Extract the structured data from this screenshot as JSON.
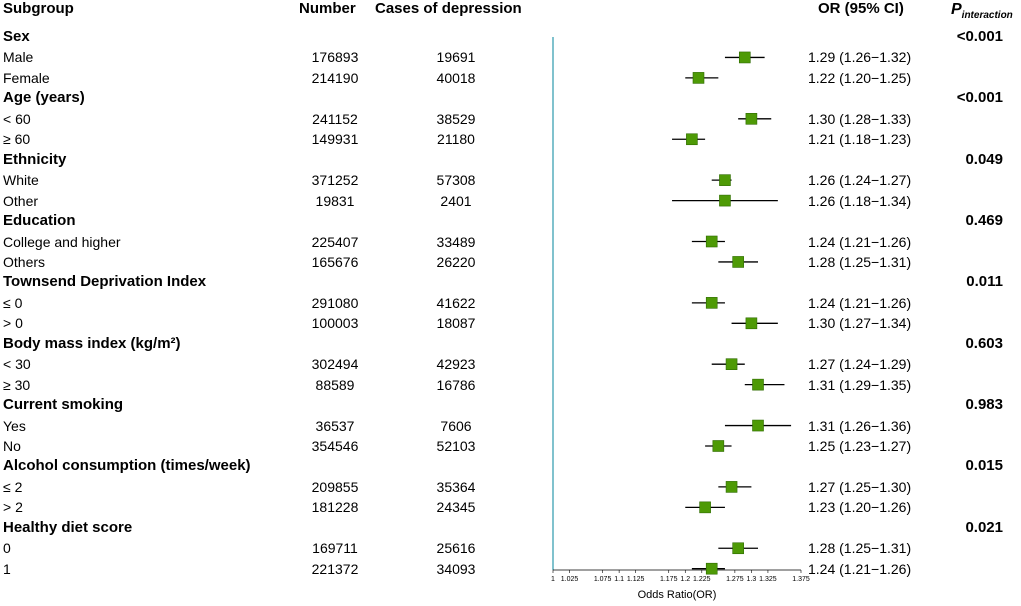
{
  "header": {
    "subgroup": "Subgroup",
    "number": "Number",
    "cases": "Cases of depression",
    "or": "OR (95% CI)",
    "p_main": "P",
    "p_sub": "interaction"
  },
  "chart_data": {
    "type": "forest",
    "xlabel": "Odds Ratio(OR)",
    "xlim": [
      1,
      1.375
    ],
    "reference_line": 1,
    "ticks": [
      "1",
      "1.025",
      "1.075",
      "1.1",
      "1.125",
      "1.175",
      "1.2",
      "1.225",
      "1.275",
      "1.3",
      "1.325",
      "1.375"
    ],
    "tick_values": [
      1,
      1.025,
      1.075,
      1.1,
      1.125,
      1.175,
      1.2,
      1.225,
      1.275,
      1.3,
      1.325,
      1.375
    ],
    "groups": [
      {
        "label": "Sex",
        "p_interaction": "<0.001",
        "subgroups": [
          {
            "label": "Male",
            "number": "176893",
            "cases": "19691",
            "or": 1.29,
            "lo": 1.26,
            "hi": 1.32,
            "or_text": "1.29 (1.26−1.32)"
          },
          {
            "label": "Female",
            "number": "214190",
            "cases": "40018",
            "or": 1.22,
            "lo": 1.2,
            "hi": 1.25,
            "or_text": "1.22 (1.20−1.25)"
          }
        ]
      },
      {
        "label": "Age (years)",
        "p_interaction": "<0.001",
        "subgroups": [
          {
            "label": "< 60",
            "number": "241152",
            "cases": "38529",
            "or": 1.3,
            "lo": 1.28,
            "hi": 1.33,
            "or_text": "1.30 (1.28−1.33)"
          },
          {
            "label": "≥ 60",
            "number": "149931",
            "cases": "21180",
            "or": 1.21,
            "lo": 1.18,
            "hi": 1.23,
            "or_text": "1.21 (1.18−1.23)"
          }
        ]
      },
      {
        "label": "Ethnicity",
        "p_interaction": "0.049",
        "subgroups": [
          {
            "label": "White",
            "number": "371252",
            "cases": "57308",
            "or": 1.26,
            "lo": 1.24,
            "hi": 1.27,
            "or_text": "1.26 (1.24−1.27)"
          },
          {
            "label": "Other",
            "number": "19831",
            "cases": "2401",
            "or": 1.26,
            "lo": 1.18,
            "hi": 1.34,
            "or_text": "1.26 (1.18−1.34)"
          }
        ]
      },
      {
        "label": "Education",
        "p_interaction": "0.469",
        "subgroups": [
          {
            "label": "College and higher",
            "number": "225407",
            "cases": "33489",
            "or": 1.24,
            "lo": 1.21,
            "hi": 1.26,
            "or_text": "1.24 (1.21−1.26)"
          },
          {
            "label": "Others",
            "number": "165676",
            "cases": "26220",
            "or": 1.28,
            "lo": 1.25,
            "hi": 1.31,
            "or_text": "1.28 (1.25−1.31)"
          }
        ]
      },
      {
        "label": "Townsend Deprivation Index",
        "p_interaction": "0.011",
        "subgroups": [
          {
            "label": "≤ 0",
            "number": "291080",
            "cases": "41622",
            "or": 1.24,
            "lo": 1.21,
            "hi": 1.26,
            "or_text": "1.24 (1.21−1.26)"
          },
          {
            "label": "> 0",
            "number": "100003",
            "cases": "18087",
            "or": 1.3,
            "lo": 1.27,
            "hi": 1.34,
            "or_text": "1.30 (1.27−1.34)"
          }
        ]
      },
      {
        "label": "Body mass index (kg/m²)",
        "p_interaction": "0.603",
        "subgroups": [
          {
            "label": "< 30",
            "number": "302494",
            "cases": "42923",
            "or": 1.27,
            "lo": 1.24,
            "hi": 1.29,
            "or_text": "1.27 (1.24−1.29)"
          },
          {
            "label": "≥ 30",
            "number": "88589",
            "cases": "16786",
            "or": 1.31,
            "lo": 1.29,
            "hi": 1.35,
            "or_text": "1.31 (1.29−1.35)"
          }
        ]
      },
      {
        "label": "Current smoking",
        "p_interaction": "0.983",
        "subgroups": [
          {
            "label": "Yes",
            "number": "36537",
            "cases": "7606",
            "or": 1.31,
            "lo": 1.26,
            "hi": 1.36,
            "or_text": "1.31 (1.26−1.36)"
          },
          {
            "label": "No",
            "number": "354546",
            "cases": "52103",
            "or": 1.25,
            "lo": 1.23,
            "hi": 1.27,
            "or_text": "1.25 (1.23−1.27)"
          }
        ]
      },
      {
        "label": "Alcohol consumption (times/week)",
        "p_interaction": "0.015",
        "subgroups": [
          {
            "label": "≤ 2",
            "number": "209855",
            "cases": "35364",
            "or": 1.27,
            "lo": 1.25,
            "hi": 1.3,
            "or_text": "1.27 (1.25−1.30)"
          },
          {
            "label": "> 2",
            "number": "181228",
            "cases": "24345",
            "or": 1.23,
            "lo": 1.2,
            "hi": 1.26,
            "or_text": "1.23 (1.20−1.26)"
          }
        ]
      },
      {
        "label": "Healthy diet score",
        "p_interaction": "0.021",
        "subgroups": [
          {
            "label": "0",
            "number": "169711",
            "cases": "25616",
            "or": 1.28,
            "lo": 1.25,
            "hi": 1.31,
            "or_text": "1.28 (1.25−1.31)"
          },
          {
            "label": "1",
            "number": "221372",
            "cases": "34093",
            "or": 1.24,
            "lo": 1.21,
            "hi": 1.26,
            "or_text": "1.24 (1.21−1.26)"
          }
        ]
      }
    ]
  },
  "colors": {
    "marker": "#4e9a06",
    "marker_border": "#2e6b00",
    "reference_line": "#4aa8b8",
    "ci_line": "#000000"
  }
}
